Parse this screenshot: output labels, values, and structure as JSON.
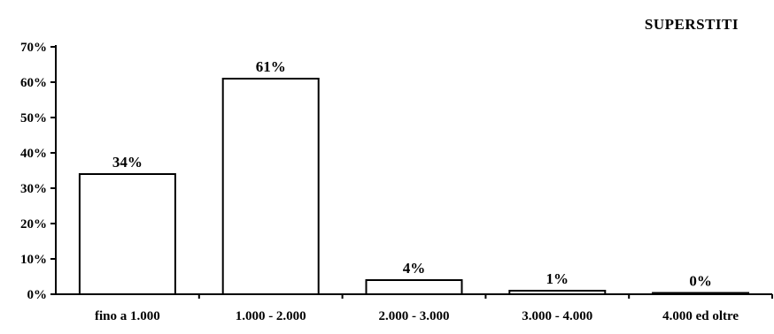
{
  "chart_data": {
    "type": "bar",
    "title": "SUPERSTITI",
    "categories": [
      "fino a 1.000",
      "1.000 - 2.000",
      "2.000 - 3.000",
      "3.000 - 4.000",
      "4.000 ed oltre"
    ],
    "values": [
      34,
      61,
      4,
      1,
      0
    ],
    "data_labels": [
      "34%",
      "61%",
      "4%",
      "1%",
      "0%"
    ],
    "y_ticks": [
      "0%",
      "10%",
      "20%",
      "30%",
      "40%",
      "50%",
      "60%",
      "70%"
    ],
    "ylim": [
      0,
      70
    ],
    "xlabel": "",
    "ylabel": "",
    "grid": false,
    "bar_color": "#ffffff",
    "bar_edge_color": "#000000"
  }
}
